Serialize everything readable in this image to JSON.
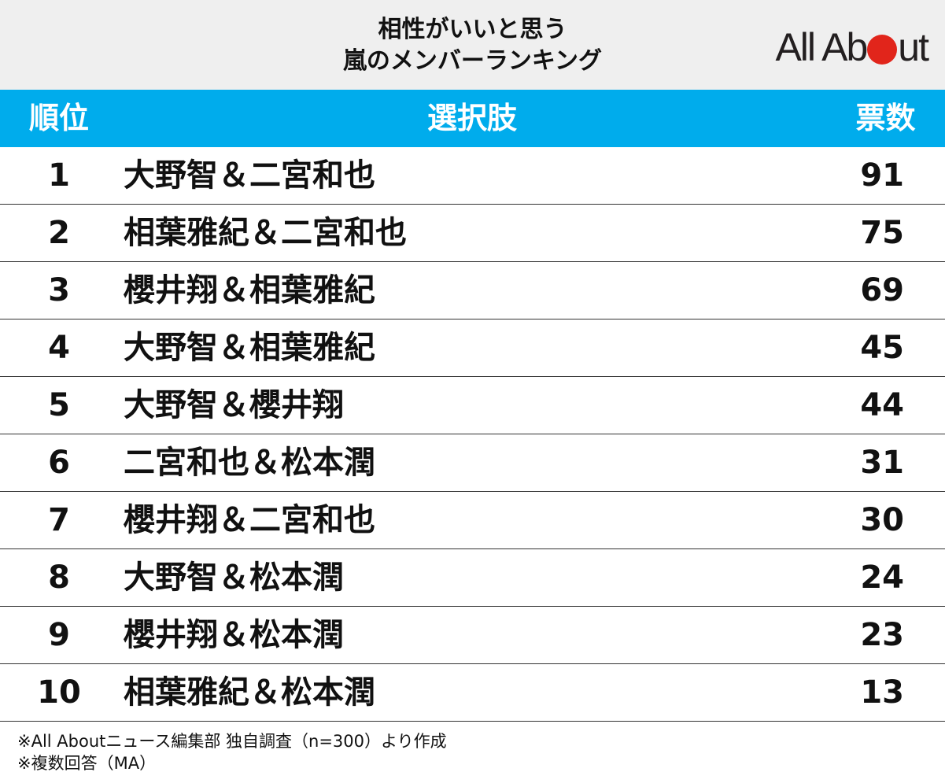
{
  "header": {
    "title_line1": "相性がいいと思う",
    "title_line2": "嵐のメンバーランキング",
    "logo_text_before": "All Ab",
    "logo_text_after": "ut"
  },
  "colors": {
    "header_bg": "#efefef",
    "table_header_bg": "#00acec",
    "logo_dot": "#e1251b"
  },
  "chart_data": {
    "type": "table",
    "title": "相性がいいと思う 嵐のメンバーランキング",
    "columns": [
      "順位",
      "選択肢",
      "票数"
    ],
    "rows": [
      {
        "rank": "1",
        "name": "大野智＆二宮和也",
        "votes": "91"
      },
      {
        "rank": "2",
        "name": "相葉雅紀＆二宮和也",
        "votes": "75"
      },
      {
        "rank": "3",
        "name": "櫻井翔＆相葉雅紀",
        "votes": "69"
      },
      {
        "rank": "4",
        "name": "大野智＆相葉雅紀",
        "votes": "45"
      },
      {
        "rank": "5",
        "name": "大野智＆櫻井翔",
        "votes": "44"
      },
      {
        "rank": "6",
        "name": "二宮和也＆松本潤",
        "votes": "31"
      },
      {
        "rank": "7",
        "name": "櫻井翔＆二宮和也",
        "votes": "30"
      },
      {
        "rank": "8",
        "name": "大野智＆松本潤",
        "votes": "24"
      },
      {
        "rank": "9",
        "name": "櫻井翔＆松本潤",
        "votes": "23"
      },
      {
        "rank": "10",
        "name": "相葉雅紀＆松本潤",
        "votes": "13"
      }
    ]
  },
  "notes": [
    "※All Aboutニュース編集部 独自調査（n=300）より作成",
    "※複数回答（MA）"
  ]
}
